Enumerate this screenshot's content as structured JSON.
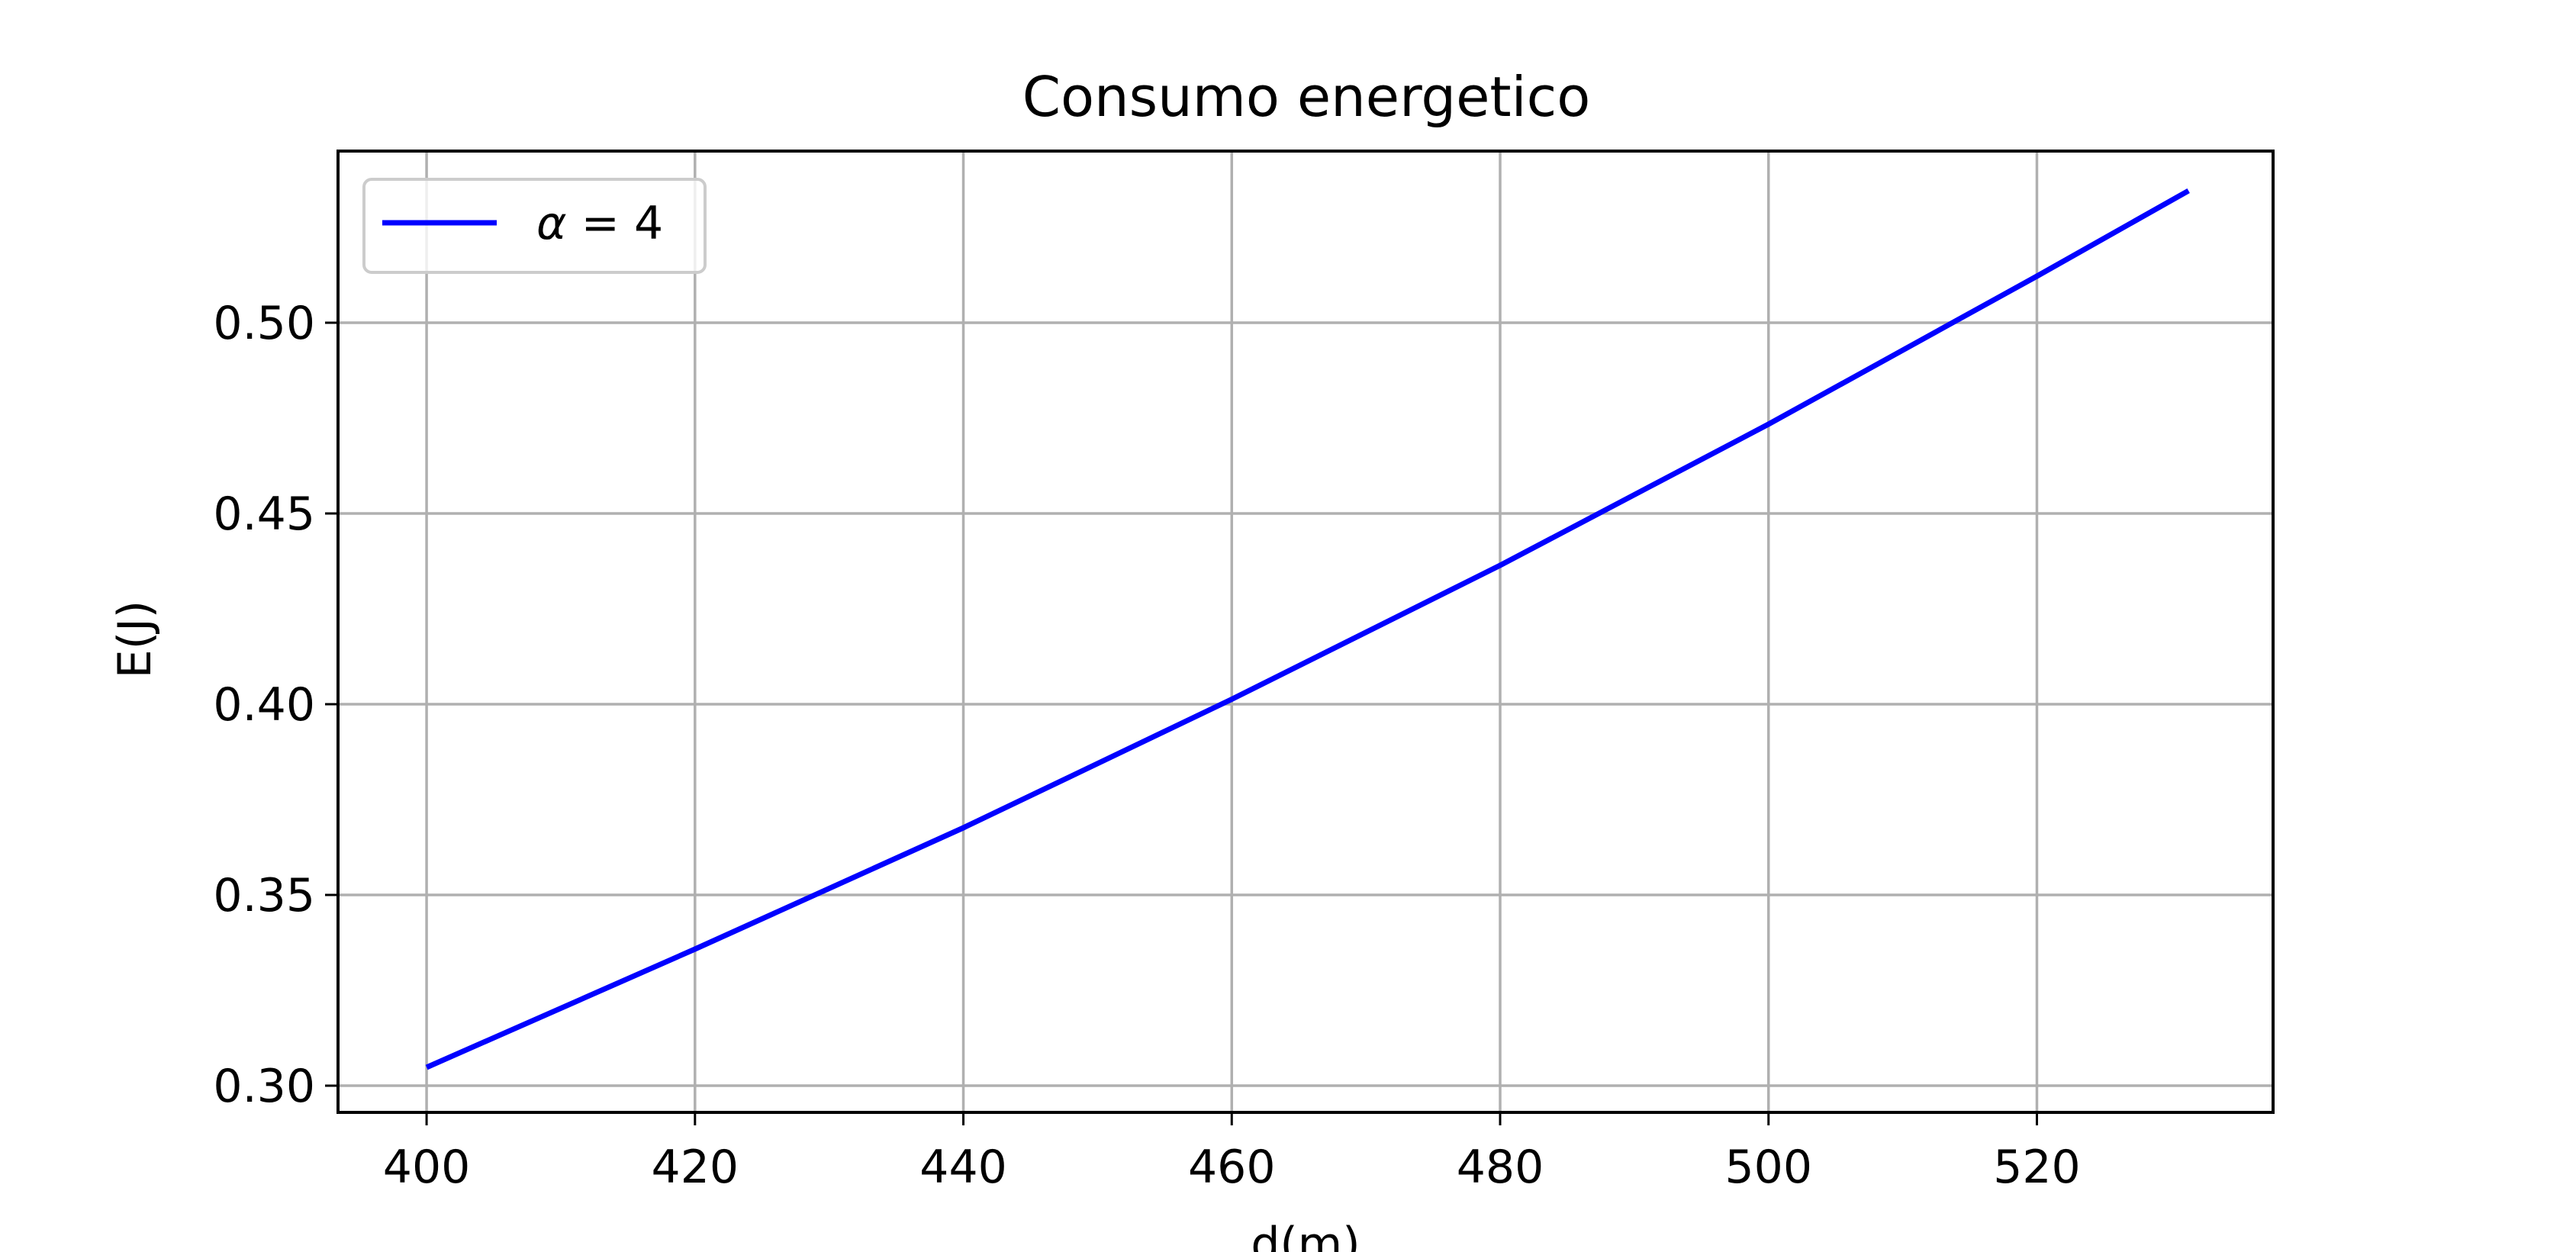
{
  "chart_data": {
    "type": "line",
    "title": "Consumo energetico",
    "xlabel": "d(m)",
    "ylabel": "E(J)",
    "xlim": [
      393.4,
      537.6
    ],
    "ylim": [
      0.293,
      0.545
    ],
    "xticks": [
      400,
      420,
      440,
      460,
      480,
      500,
      520
    ],
    "xtick_labels": [
      "400",
      "420",
      "440",
      "460",
      "480",
      "500",
      "520"
    ],
    "yticks": [
      0.3,
      0.35,
      0.4,
      0.45,
      0.5
    ],
    "ytick_labels": [
      "0.30",
      "0.35",
      "0.40",
      "0.45",
      "0.50"
    ],
    "grid": true,
    "legend_position": "upper-left",
    "series": [
      {
        "name_symbol": "α",
        "name_rest": " = 4",
        "color": "#0000ff",
        "x": [
          400,
          420,
          440,
          460,
          480,
          500,
          520,
          531.3
        ],
        "y": [
          0.3048,
          0.3358,
          0.3676,
          0.4013,
          0.4364,
          0.4734,
          0.5122,
          0.5346
        ]
      }
    ]
  }
}
